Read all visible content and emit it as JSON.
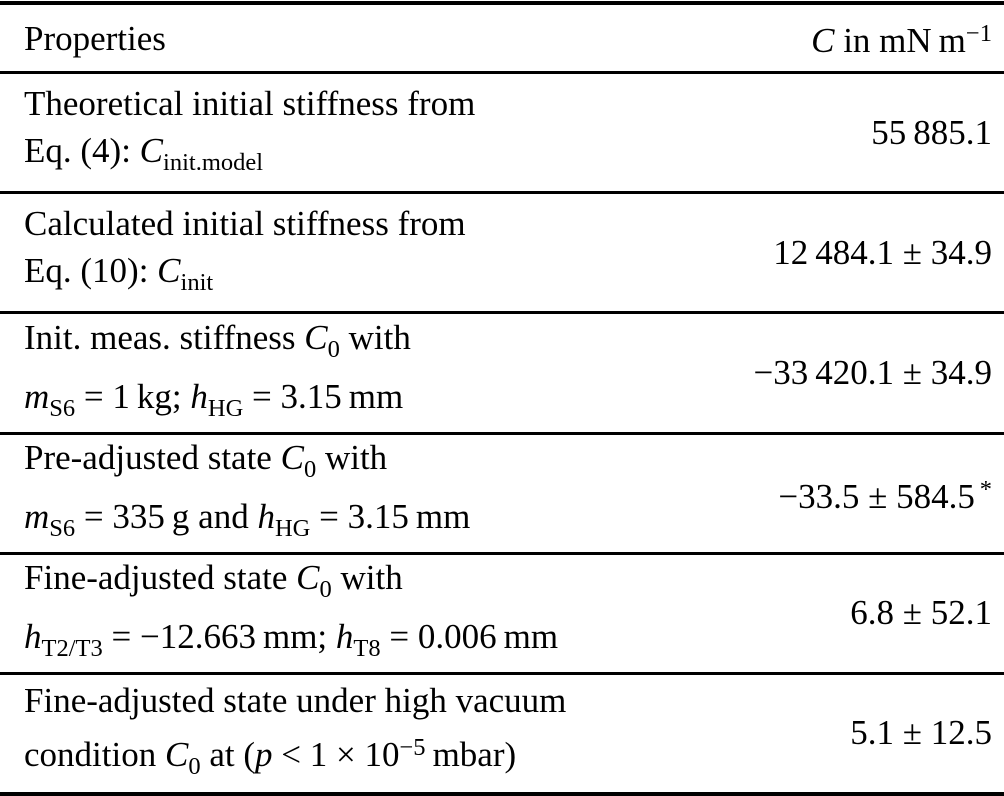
{
  "colors": {
    "background": "#ffffff",
    "text": "#000000",
    "rule": "#000000"
  },
  "table": {
    "columns": {
      "property": [
        {
          "t": "Properties"
        }
      ],
      "value": [
        {
          "t": "C",
          "s": "i"
        },
        {
          "t": " in mN m"
        },
        {
          "t": "−1",
          "s": "sup"
        }
      ]
    },
    "rows": [
      {
        "property_line1": [
          {
            "t": "Theoretical initial stiffness from"
          }
        ],
        "property_line2": [
          {
            "t": "Eq. (4): "
          },
          {
            "t": "C",
            "s": "i"
          },
          {
            "t": "init.model",
            "s": "sub"
          }
        ],
        "value": [
          {
            "t": "55 885.1"
          }
        ]
      },
      {
        "property_line1": [
          {
            "t": "Calculated initial stiffness from"
          }
        ],
        "property_line2": [
          {
            "t": "Eq. (10): "
          },
          {
            "t": "C",
            "s": "i"
          },
          {
            "t": "init",
            "s": "sub"
          }
        ],
        "value": [
          {
            "t": "12 484.1 ± 34.9"
          }
        ]
      },
      {
        "property_line1": [
          {
            "t": "Init. meas. stiffness "
          },
          {
            "t": "C",
            "s": "i"
          },
          {
            "t": "0",
            "s": "sub"
          },
          {
            "t": " with"
          }
        ],
        "property_line2": [
          {
            "t": "m",
            "s": "i"
          },
          {
            "t": "S6",
            "s": "sub"
          },
          {
            "t": " = 1 kg; "
          },
          {
            "t": "h",
            "s": "i"
          },
          {
            "t": "HG",
            "s": "sub"
          },
          {
            "t": " = 3.15 mm"
          }
        ],
        "value": [
          {
            "t": "−33 420.1 ± 34.9"
          }
        ]
      },
      {
        "property_line1": [
          {
            "t": "Pre-adjusted state "
          },
          {
            "t": "C",
            "s": "i"
          },
          {
            "t": "0",
            "s": "sub"
          },
          {
            "t": " with"
          }
        ],
        "property_line2": [
          {
            "t": "m",
            "s": "i"
          },
          {
            "t": "S6",
            "s": "sub"
          },
          {
            "t": " = 335 g and "
          },
          {
            "t": "h",
            "s": "i"
          },
          {
            "t": "HG",
            "s": "sub"
          },
          {
            "t": " = 3.15 mm"
          }
        ],
        "value": [
          {
            "t": "−33.5 ± 584.5"
          },
          {
            "t": " *",
            "s": "sup"
          }
        ]
      },
      {
        "property_line1": [
          {
            "t": "Fine-adjusted state "
          },
          {
            "t": "C",
            "s": "i"
          },
          {
            "t": "0",
            "s": "sub"
          },
          {
            "t": " with"
          }
        ],
        "property_line2": [
          {
            "t": "h",
            "s": "i"
          },
          {
            "t": "T2/T3",
            "s": "sub"
          },
          {
            "t": " = −12.663 mm; "
          },
          {
            "t": "h",
            "s": "i"
          },
          {
            "t": "T8",
            "s": "sub"
          },
          {
            "t": " = 0.006 mm"
          }
        ],
        "value": [
          {
            "t": "6.8 ± 52.1"
          }
        ]
      },
      {
        "property_line1": [
          {
            "t": "Fine-adjusted state under high vacuum"
          }
        ],
        "property_line2": [
          {
            "t": "condition "
          },
          {
            "t": "C",
            "s": "i"
          },
          {
            "t": "0",
            "s": "sub"
          },
          {
            "t": " at ("
          },
          {
            "t": "p",
            "s": "i"
          },
          {
            "t": " < 1 × 10"
          },
          {
            "t": "−5",
            "s": "sup"
          },
          {
            "t": " mbar)"
          }
        ],
        "value": [
          {
            "t": "5.1 ± 12.5"
          }
        ]
      }
    ]
  }
}
